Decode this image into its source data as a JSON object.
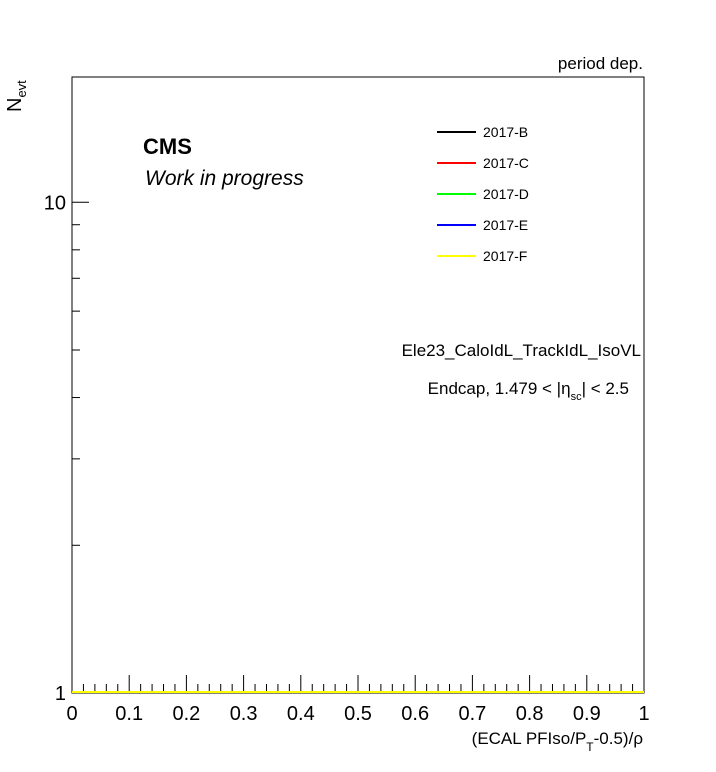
{
  "header": {
    "corner_label": "period dep."
  },
  "labels": {
    "cms": "CMS",
    "work_in_progress": "Work in progress",
    "trigger": "Ele23_CaloIdL_TrackIdL_IsoVL",
    "region_prefix": "Endcap, 1.479 < |",
    "region_eta": "η",
    "region_sub": "sc",
    "region_suffix": "| < 2.5"
  },
  "chart_data": {
    "type": "line",
    "ylabel": "N",
    "ylabel_sub": "evt",
    "xlabel_prefix": "(ECAL PFIso/P",
    "xlabel_sub": "T",
    "xlabel_suffix": "-0.5)/ρ",
    "xlim": [
      0,
      1
    ],
    "ylim": [
      1,
      18
    ],
    "y_scale": "log",
    "x_tick_labels": [
      "0",
      "0.1",
      "0.2",
      "0.3",
      "0.4",
      "0.5",
      "0.6",
      "0.7",
      "0.8",
      "0.9",
      "1"
    ],
    "y_tick_labels": [
      "1",
      "10"
    ],
    "legend_placement": "top-right",
    "series": [
      {
        "name": "2017-B",
        "color": "#000000",
        "x": [
          0,
          1
        ],
        "y": [
          1,
          1
        ]
      },
      {
        "name": "2017-C",
        "color": "#ff0000",
        "x": [
          0,
          1
        ],
        "y": [
          1,
          1
        ]
      },
      {
        "name": "2017-D",
        "color": "#00ff00",
        "x": [
          0,
          1
        ],
        "y": [
          1,
          1
        ]
      },
      {
        "name": "2017-E",
        "color": "#0000ff",
        "x": [
          0,
          1
        ],
        "y": [
          1,
          1
        ]
      },
      {
        "name": "2017-F",
        "color": "#ffff00",
        "x": [
          0,
          1
        ],
        "y": [
          1,
          1
        ]
      }
    ]
  }
}
